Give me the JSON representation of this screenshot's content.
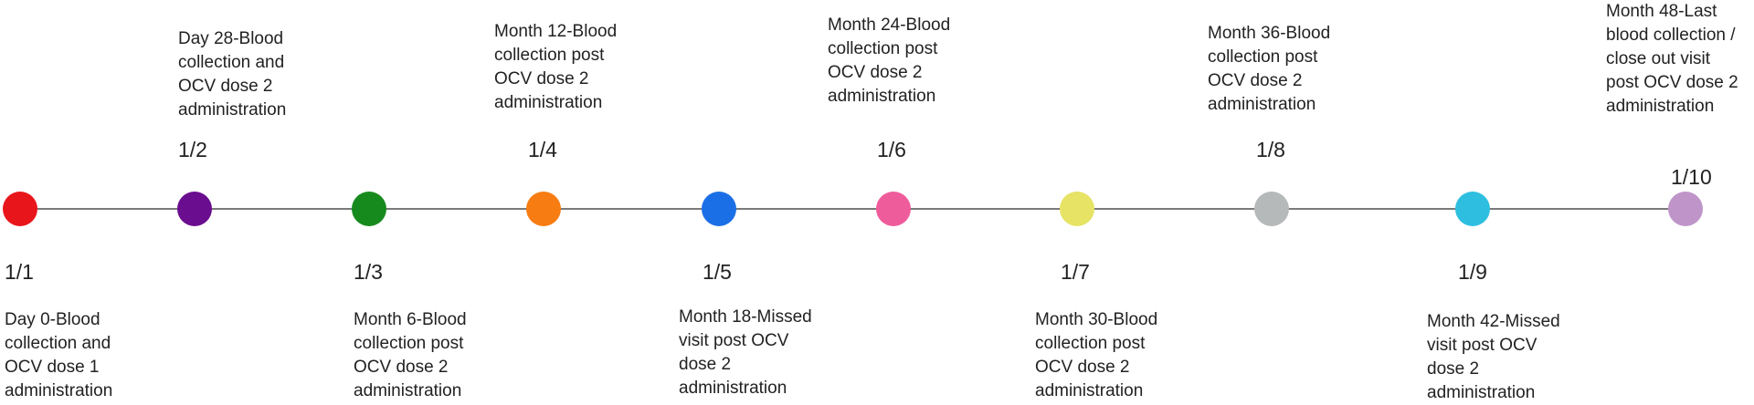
{
  "events": [
    {
      "index": "1/1",
      "text": "Day 0-Blood\ncollection and\nOCV dose 1\nadministration",
      "color": "#e8161b"
    },
    {
      "index": "1/2",
      "text": "Day 28-Blood\ncollection and\nOCV dose 2\nadministration",
      "color": "#6a0d8f"
    },
    {
      "index": "1/3",
      "text": "Month 6-Blood\ncollection post\nOCV dose 2\nadministration",
      "color": "#178a1e"
    },
    {
      "index": "1/4",
      "text": "Month 12-Blood\ncollection post\nOCV dose 2\nadministration",
      "color": "#f77d12"
    },
    {
      "index": "1/5",
      "text": "Month 18-Missed\nvisit post OCV\ndose 2\nadministration",
      "color": "#1b6fe6"
    },
    {
      "index": "1/6",
      "text": "Month 24-Blood\ncollection post\nOCV dose 2\nadministration",
      "color": "#ee5c9c"
    },
    {
      "index": "1/7",
      "text": "Month 30-Blood\ncollection post\nOCV dose 2\nadministration",
      "color": "#e6e365"
    },
    {
      "index": "1/8",
      "text": "Month 36-Blood\ncollection post\nOCV dose 2\nadministration",
      "color": "#b5b9ba"
    },
    {
      "index": "1/9",
      "text": "Month 42-Missed\nvisit post OCV\ndose 2\nadministration",
      "color": "#2ebfe0"
    },
    {
      "index": "1/10",
      "text": "Month 48-Last\nblood collection /\nclose out visit\npost OCV dose 2\nadministration",
      "color": "#bf95c9"
    }
  ]
}
